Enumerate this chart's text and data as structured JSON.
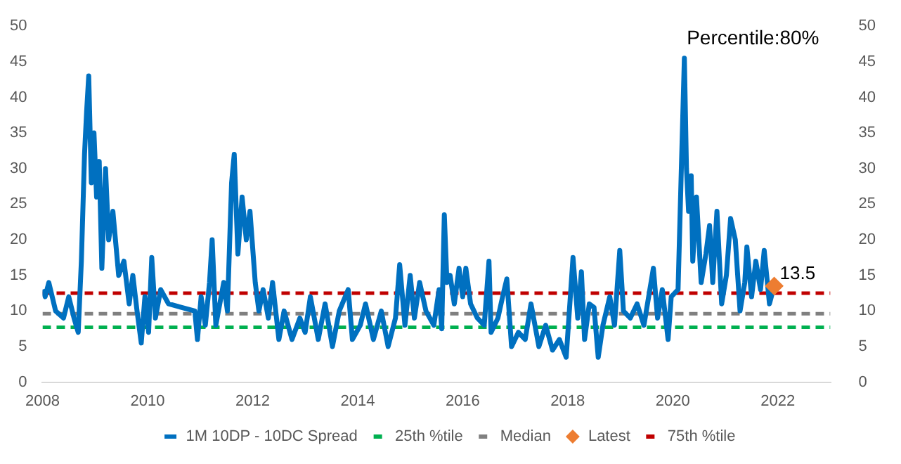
{
  "chart_data": {
    "type": "line",
    "annotations": [
      "Percentile:80%"
    ],
    "xlim": [
      2008,
      2023
    ],
    "xticks": [
      2008,
      2010,
      2012,
      2014,
      2016,
      2018,
      2020,
      2022
    ],
    "ylim": [
      0,
      50
    ],
    "yticks": [
      0,
      5,
      10,
      15,
      20,
      25,
      30,
      35,
      40,
      45,
      50
    ],
    "y2lim": [
      0,
      50
    ],
    "y2ticks": [
      0,
      5,
      10,
      15,
      20,
      25,
      30,
      35,
      40,
      45,
      50
    ],
    "grid": false,
    "legend": "bottom",
    "series": [
      {
        "type": "line",
        "name": "1M 10DP - 10DC Spread",
        "color": "#0070c0",
        "line_style": "solid",
        "marker": "none",
        "x": [
          2008.0,
          2008.05,
          2008.12,
          2008.25,
          2008.4,
          2008.5,
          2008.6,
          2008.68,
          2008.74,
          2008.8,
          2008.84,
          2008.88,
          2008.93,
          2008.98,
          2009.03,
          2009.08,
          2009.13,
          2009.2,
          2009.26,
          2009.34,
          2009.45,
          2009.55,
          2009.65,
          2009.72,
          2009.8,
          2009.88,
          2009.95,
          2010.02,
          2010.08,
          2010.15,
          2010.25,
          2010.4,
          2010.9,
          2010.95,
          2011.02,
          2011.1,
          2011.18,
          2011.23,
          2011.3,
          2011.45,
          2011.52,
          2011.6,
          2011.65,
          2011.72,
          2011.8,
          2011.88,
          2011.95,
          2012.05,
          2012.12,
          2012.2,
          2012.3,
          2012.38,
          2012.5,
          2012.6,
          2012.75,
          2012.9,
          2013.0,
          2013.1,
          2013.25,
          2013.38,
          2013.52,
          2013.65,
          2013.82,
          2013.9,
          2014.05,
          2014.15,
          2014.3,
          2014.45,
          2014.58,
          2014.72,
          2014.8,
          2014.9,
          2015.0,
          2015.08,
          2015.18,
          2015.3,
          2015.45,
          2015.55,
          2015.6,
          2015.65,
          2015.7,
          2015.76,
          2015.84,
          2015.93,
          2016.0,
          2016.06,
          2016.15,
          2016.28,
          2016.41,
          2016.5,
          2016.54,
          2016.67,
          2016.76,
          2016.84,
          2016.93,
          2017.06,
          2017.19,
          2017.3,
          2017.45,
          2017.58,
          2017.71,
          2017.84,
          2017.97,
          2018.1,
          2018.19,
          2018.26,
          2018.32,
          2018.41,
          2018.5,
          2018.58,
          2018.67,
          2018.8,
          2018.89,
          2018.99,
          2019.06,
          2019.19,
          2019.32,
          2019.45,
          2019.63,
          2019.71,
          2019.8,
          2019.91,
          2019.97,
          2020.1,
          2020.17,
          2020.22,
          2020.26,
          2020.3,
          2020.35,
          2020.38,
          2020.45,
          2020.54,
          2020.63,
          2020.7,
          2020.76,
          2020.84,
          2020.93,
          2021.02,
          2021.1,
          2021.19,
          2021.28,
          2021.37,
          2021.41,
          2021.5,
          2021.58,
          2021.67,
          2021.74,
          2021.84,
          2021.93
        ],
        "values": [
          13,
          12,
          14,
          10,
          9,
          12,
          9,
          7,
          17,
          32,
          38,
          43,
          28,
          35,
          26,
          31,
          16,
          30,
          20,
          24,
          15,
          17,
          11,
          15,
          10,
          5.5,
          12,
          7,
          17.5,
          9,
          13,
          11,
          10,
          6,
          12,
          8,
          14,
          20,
          8,
          14,
          10,
          28,
          32,
          18,
          26,
          20,
          24,
          14,
          10,
          13,
          9,
          14,
          6,
          10,
          6,
          9,
          7,
          12,
          6,
          11,
          5,
          10,
          13,
          6,
          8,
          11,
          6,
          10,
          5,
          9,
          16.5,
          8,
          15,
          9,
          14,
          10,
          8,
          13,
          7.5,
          23.5,
          14,
          15,
          11,
          16,
          12,
          16,
          11,
          9,
          8,
          17,
          7,
          9,
          12,
          14.5,
          5,
          7,
          6,
          11,
          5,
          8,
          4.5,
          6,
          3.5,
          17.5,
          9,
          15.5,
          6,
          11,
          10.5,
          3.5,
          8,
          12,
          8,
          18.5,
          10,
          9,
          11,
          8,
          16,
          9,
          13,
          6,
          12,
          13,
          32,
          45.5,
          30,
          24,
          29,
          17,
          26,
          14,
          18,
          22,
          14,
          24,
          11,
          15,
          23,
          20,
          10,
          14,
          19,
          12,
          17,
          13,
          18.5,
          11,
          13.5
        ]
      },
      {
        "type": "line",
        "name": "25th %tile",
        "color": "#00b050",
        "line_style": "dashed",
        "marker": "none",
        "x": [
          2008,
          2023
        ],
        "values": [
          7.7,
          7.7
        ]
      },
      {
        "type": "line",
        "name": "Median",
        "color": "#808080",
        "line_style": "dashed",
        "marker": "none",
        "x": [
          2008,
          2023
        ],
        "values": [
          9.6,
          9.6
        ]
      },
      {
        "type": "scatter",
        "name": "Latest",
        "color": "#ed7d31",
        "marker": "diamond",
        "x": [
          2021.93
        ],
        "values": [
          13.5
        ],
        "value_labels": [
          "13.5"
        ]
      },
      {
        "type": "line",
        "name": "75th %tile",
        "color": "#c00000",
        "line_style": "dashed",
        "marker": "none",
        "x": [
          2008,
          2023
        ],
        "values": [
          12.5,
          12.5
        ]
      }
    ]
  }
}
